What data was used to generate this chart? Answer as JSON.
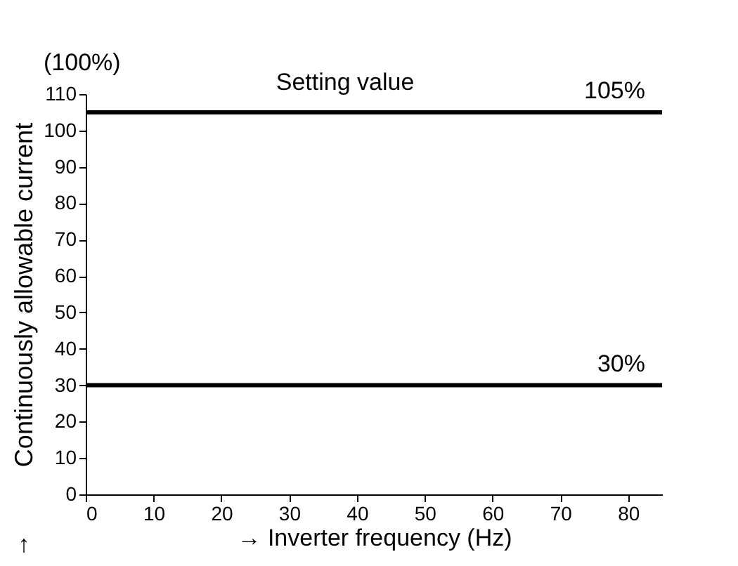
{
  "chart_data": {
    "type": "line",
    "xlabel": "→ Inverter frequency (Hz)",
    "ylabel": "Continuously allowable current",
    "ref_lines": [
      {
        "axis": "y",
        "value": 105,
        "label": "105%",
        "color": "#000000",
        "line_style": "solid"
      },
      {
        "axis": "y",
        "value": 30,
        "label": "30%",
        "color": "#000000",
        "line_style": "solid"
      }
    ],
    "xlim": [
      0,
      85
    ],
    "xticks": [
      0,
      10,
      20,
      30,
      40,
      50,
      60,
      70,
      80
    ],
    "ylim": [
      0,
      110
    ],
    "yticks": [
      0,
      10,
      20,
      30,
      40,
      50,
      60,
      70,
      80,
      90,
      100,
      110
    ],
    "grid": false,
    "annotations": [
      "(100%)",
      "↑",
      "Setting value"
    ]
  }
}
